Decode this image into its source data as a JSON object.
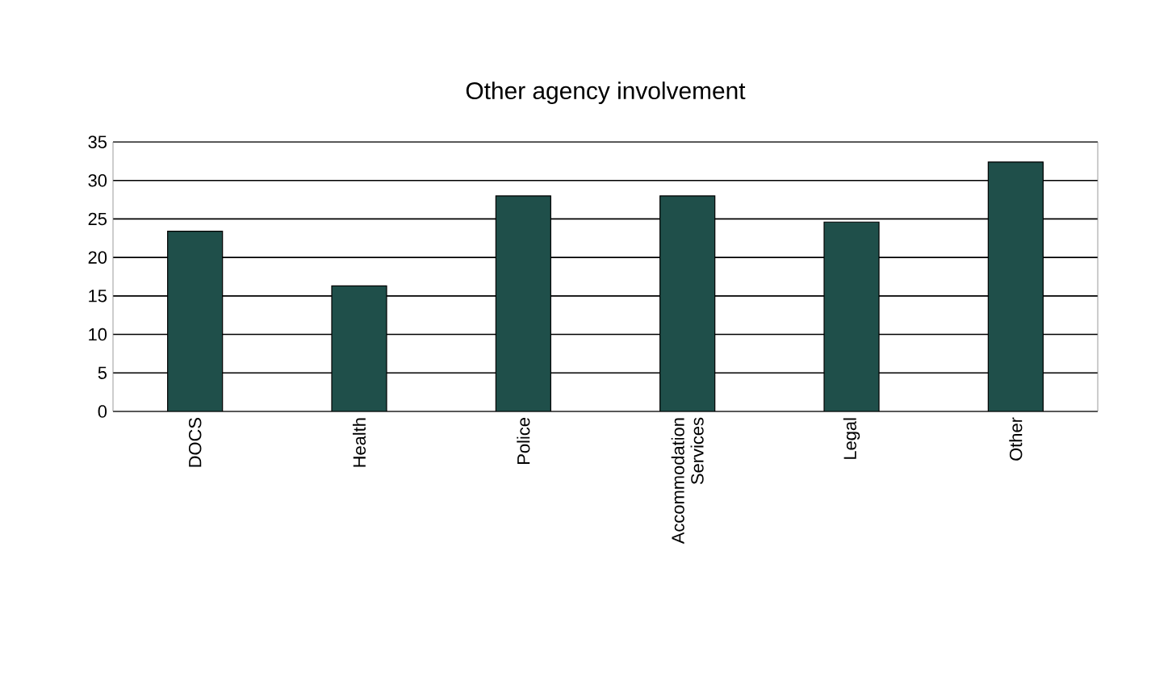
{
  "chart_data": {
    "type": "bar",
    "title": "Other agency involvement",
    "categories": [
      "DOCS",
      "Health",
      "Police",
      "Accommodation Services",
      "Legal",
      "Other"
    ],
    "values": [
      23.4,
      16.3,
      28,
      28,
      24.6,
      32.4
    ],
    "color": "#1f4f4a",
    "ylim": [
      0,
      35
    ],
    "yticks": [
      0,
      5,
      10,
      15,
      20,
      25,
      30,
      35
    ],
    "grid": "y"
  }
}
